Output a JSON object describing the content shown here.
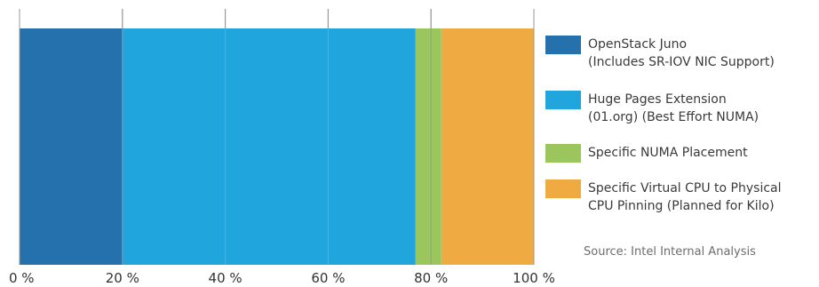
{
  "chart_data": {
    "type": "bar",
    "orientation": "horizontal",
    "stacked": true,
    "title": "",
    "xlabel": "",
    "ylabel": "",
    "xlim": [
      0,
      100
    ],
    "x_ticks": [
      0,
      20,
      40,
      60,
      80,
      100
    ],
    "x_tick_labels": [
      "0 %",
      "20 %",
      "40 %",
      "60 %",
      "80 %",
      "100 %"
    ],
    "grid": "vertical",
    "legend_position": "right",
    "series": [
      {
        "name": "OpenStack Juno\n(Includes SR-IOV NIC Support)",
        "value": 20,
        "color": "#2471ad"
      },
      {
        "name": "Huge Pages Extension\n(01.org) (Best Effort NUMA)",
        "value": 57,
        "color": "#20a6dd"
      },
      {
        "name": "Specific NUMA Placement",
        "value": 5,
        "color": "#9bc55d"
      },
      {
        "name": "Specific Virtual CPU to Physical\nCPU Pinning (Planned for Kilo)",
        "value": 18,
        "color": "#f0aa42"
      }
    ]
  },
  "source": "Source: Intel Internal Analysis"
}
